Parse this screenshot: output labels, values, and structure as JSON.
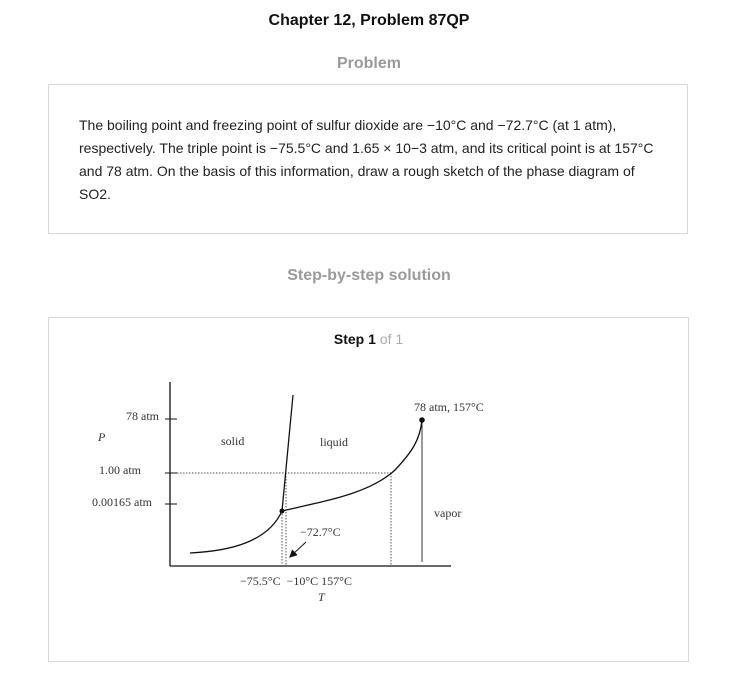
{
  "header": {
    "title": "Chapter 12, Problem 87QP"
  },
  "problem": {
    "heading": "Problem",
    "text": "The boiling point and freezing point of sulfur dioxide are −10°C and −72.7°C (at 1 atm), respectively. The triple point is −75.5°C and 1.65 × 10−3 atm, and its critical point is at 157°C and 78 atm. On the basis of this information, draw a rough sketch of the phase diagram of SO2."
  },
  "solution": {
    "heading": "Step-by-step solution",
    "step_word": "Step",
    "step_number": "1",
    "step_of": "of 1"
  },
  "diagram": {
    "y_axis_label": "P",
    "x_axis_label": "T",
    "p_label_78": "78 atm",
    "p_label_1": "1.00 atm",
    "p_label_triple": "0.00165 atm",
    "region_solid": "solid",
    "region_liquid": "liquid",
    "region_vapor": "vapor",
    "critical_point_label": "78 atm, 157°C",
    "freezing_label": "−72.7°C",
    "t_axis_labels": "−75.5°C  −10°C 157°C"
  }
}
